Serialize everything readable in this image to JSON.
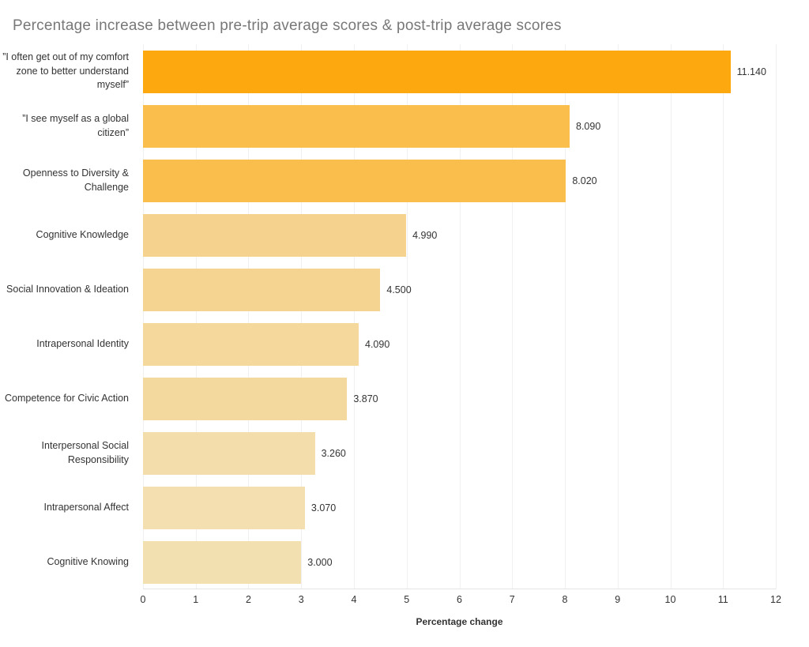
{
  "chart_data": {
    "type": "bar",
    "orientation": "horizontal",
    "title": "Percentage increase between pre-trip average scores & post-trip average scores",
    "xlabel": "Percentage change",
    "xlim": [
      0,
      12
    ],
    "x_ticks": [
      "0",
      "1",
      "2",
      "3",
      "4",
      "5",
      "6",
      "7",
      "8",
      "9",
      "10",
      "11",
      "12"
    ],
    "grid": "vertical-light",
    "legend": "none",
    "categories": [
      "”I often get out of my comfort zone to better understand myself”",
      "”I see myself as a global citizen”",
      "Openness to Diversity & Challenge",
      "Cognitive Knowledge",
      "Social Innovation & Ideation",
      "Intrapersonal Identity",
      "Competence for Civic Action",
      "Interpersonal Social Responsibility",
      "Intrapersonal Affect",
      "Cognitive Knowing"
    ],
    "values": [
      11.14,
      8.09,
      8.02,
      4.99,
      4.5,
      4.09,
      3.87,
      3.26,
      3.07,
      3.0
    ],
    "value_labels": [
      "11.140",
      "8.090",
      "8.020",
      "4.990",
      "4.500",
      "4.090",
      "3.870",
      "3.260",
      "3.070",
      "3.000"
    ],
    "bar_colors": [
      "#FCA80E",
      "#F9BE4B",
      "#F9BE4C",
      "#F5D38E",
      "#F5D492",
      "#F4D89C",
      "#F4D99F",
      "#F3DEAB",
      "#F3DFAF",
      "#F3E0B1"
    ]
  },
  "colors": {
    "title_text": "#787878",
    "label_text": "#333333",
    "grid_line": "#f0f0f0",
    "axis_line": "#e4e4e4",
    "background": "#ffffff"
  }
}
